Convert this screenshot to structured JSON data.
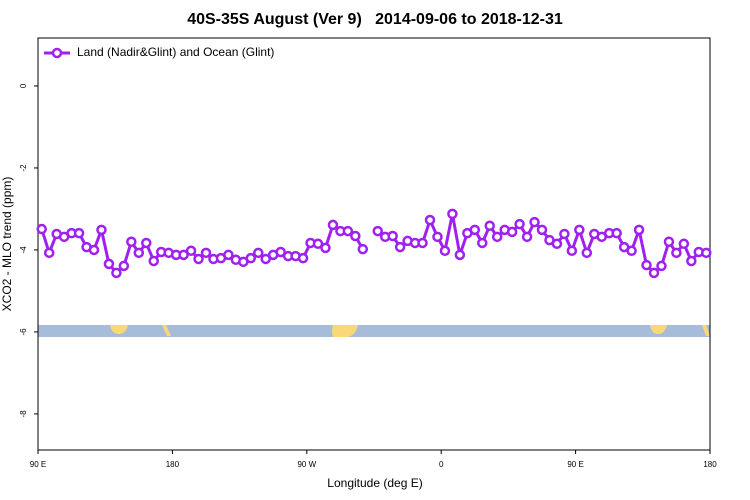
{
  "chart_data": {
    "type": "line",
    "title": "40S-35S August (Ver 9)   2014-09-06 to 2018-12-31",
    "x_label": "Longitude (deg E)",
    "y_label": "XCO2 - MLO trend (ppm)",
    "xlim": [
      90,
      540
    ],
    "ylim": [
      -8.88,
      1.17
    ],
    "xticks": [
      {
        "value": 90,
        "label": "90 E"
      },
      {
        "value": 180,
        "label": "180"
      },
      {
        "value": 270,
        "label": "90 W"
      },
      {
        "value": 360,
        "label": "0"
      },
      {
        "value": 450,
        "label": "90 E"
      },
      {
        "value": 540,
        "label": "180"
      }
    ],
    "yticks": [
      0,
      -2,
      -4,
      -6,
      -8
    ],
    "legend": "top-left",
    "x": [
      92.5,
      97.5,
      102.5,
      107.5,
      112.5,
      117.5,
      122.5,
      127.5,
      132.5,
      137.5,
      142.5,
      147.5,
      152.5,
      157.5,
      162.5,
      167.5,
      172.5,
      177.5,
      182.5,
      187.5,
      192.5,
      197.5,
      202.5,
      207.5,
      212.5,
      217.5,
      222.5,
      227.5,
      232.5,
      237.5,
      242.5,
      247.5,
      252.5,
      257.5,
      262.5,
      267.5,
      272.5,
      277.5,
      282.5,
      287.5,
      292.5,
      297.5,
      302.5,
      307.5,
      312.5,
      317.5,
      322.5,
      327.5,
      332.5,
      337.5,
      342.5,
      347.5,
      352.5,
      357.5,
      362.5,
      367.5,
      372.5,
      377.5,
      382.5,
      387.5,
      392.5,
      397.5,
      402.5,
      407.5,
      412.5,
      417.5,
      422.5,
      427.5,
      432.5,
      437.5,
      442.5,
      447.5,
      452.5,
      457.5,
      462.5,
      467.5,
      472.5,
      477.5,
      482.5,
      487.5,
      492.5,
      497.5,
      502.5,
      507.5,
      512.5,
      517.5,
      522.5,
      527.5,
      532.5,
      537.5
    ],
    "series": [
      {
        "name": "Land (Nadir&Glint) and Ocean (Glint)",
        "color": "#a020f0",
        "values": [
          -3.49,
          -4.07,
          -3.61,
          -3.68,
          -3.59,
          -3.59,
          -3.93,
          -4.0,
          -3.51,
          -4.34,
          -4.56,
          -4.39,
          -3.8,
          -4.07,
          -3.83,
          -4.27,
          -4.05,
          -4.07,
          -4.12,
          -4.12,
          -4.02,
          -4.22,
          -4.07,
          -4.22,
          -4.2,
          -4.12,
          -4.24,
          -4.29,
          -4.2,
          -4.07,
          -4.22,
          -4.12,
          -4.05,
          -4.15,
          -4.15,
          -4.2,
          -3.83,
          -3.85,
          -3.95,
          -3.39,
          -3.54,
          -3.54,
          -3.66,
          -3.98,
          null,
          -3.54,
          -3.68,
          -3.66,
          -3.93,
          -3.78,
          -3.83,
          -3.83,
          -3.27,
          -3.68,
          -4.02,
          -3.12,
          -4.12,
          -3.59,
          -3.51,
          -3.83,
          -3.41,
          -3.68,
          -3.51,
          -3.56,
          -3.37,
          -3.68,
          -3.32,
          -3.51,
          -3.76,
          -3.85,
          -3.61,
          -4.02,
          -3.51,
          -4.07,
          -3.61,
          -3.68,
          -3.59,
          -3.59,
          -3.93,
          -4.02,
          -3.51,
          -4.37,
          -4.56,
          -4.39,
          -3.8,
          -4.07,
          -3.85,
          -4.27,
          -4.05,
          -4.07
        ]
      }
    ]
  }
}
